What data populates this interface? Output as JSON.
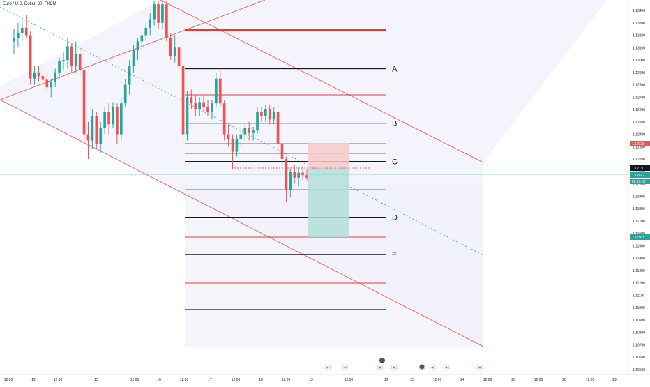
{
  "header": {
    "title": "Euro / U.S. Dollar, 30, FXCM"
  },
  "colors": {
    "up": "#26a69a",
    "down": "#ef5350",
    "level_black": "#131722",
    "level_red": "#e53935",
    "channel": "#f06868",
    "trend_dotted": "#4fa8d8",
    "target_zone": "#b2dfdb",
    "stop_zone": "#f8c9c9",
    "price_tag": "#ef5350",
    "current_tag": "#26a69a"
  },
  "chart_data": {
    "type": "candlestick",
    "x_axis": {
      "tick_labels": [
        "12:00",
        "12",
        "12:00",
        "15",
        "12:00",
        "16",
        "12:00",
        "17",
        "12:00",
        "18",
        "12:00",
        "19",
        "12:00",
        "22",
        "23",
        "12:00",
        "24",
        "12:00",
        "25",
        "12:00",
        "26",
        "12:00",
        "29"
      ]
    },
    "y_axis": {
      "range": [
        1.1045,
        1.135
      ],
      "tick_labels": [
        "1.13400",
        "1.13300",
        "1.13200",
        "1.13100",
        "1.13000",
        "1.12900",
        "1.12800",
        "1.12700",
        "1.12600",
        "1.12500",
        "1.12400",
        "1.12300",
        "1.12200",
        "1.12100",
        "1.12000",
        "1.11900",
        "1.11800",
        "1.11700",
        "1.11600",
        "1.11500",
        "1.11400",
        "1.11300",
        "1.11200",
        "1.11100",
        "1.11000",
        "1.10900",
        "1.10800",
        "1.10700",
        "1.10600",
        "1.10500"
      ]
    },
    "price_tags": {
      "stop": "1.12325",
      "entry": "1.12130",
      "current": "1.12072",
      "countdown": "05:19:53",
      "target": "1.11567"
    },
    "levels": [
      {
        "label": "A",
        "price": 1.1293
      },
      {
        "label": "B",
        "price": 1.1249
      },
      {
        "label": "C",
        "price": 1.1218
      },
      {
        "label": "D",
        "price": 1.1173
      },
      {
        "label": "E",
        "price": 1.1143
      }
    ],
    "candles": [
      [
        1.1315,
        1.1325,
        1.1305,
        1.1318
      ],
      [
        1.1318,
        1.133,
        1.131,
        1.1322
      ],
      [
        1.1322,
        1.1332,
        1.1315,
        1.1326
      ],
      [
        1.1326,
        1.1336,
        1.1318,
        1.132
      ],
      [
        1.132,
        1.1323,
        1.128,
        1.1285
      ],
      [
        1.1285,
        1.1295,
        1.128,
        1.129
      ],
      [
        1.129,
        1.1295,
        1.1283,
        1.1287
      ],
      [
        1.1287,
        1.1292,
        1.128,
        1.1284
      ],
      [
        1.1284,
        1.1289,
        1.1275,
        1.1278
      ],
      [
        1.1278,
        1.1285,
        1.127,
        1.1282
      ],
      [
        1.1282,
        1.1293,
        1.1278,
        1.129
      ],
      [
        1.129,
        1.1302,
        1.1285,
        1.1299
      ],
      [
        1.1299,
        1.1306,
        1.1292,
        1.13
      ],
      [
        1.13,
        1.1318,
        1.1293,
        1.1311
      ],
      [
        1.1311,
        1.1314,
        1.129,
        1.1295
      ],
      [
        1.1295,
        1.1315,
        1.129,
        1.1305
      ],
      [
        1.1305,
        1.131,
        1.1288,
        1.1292
      ],
      [
        1.1292,
        1.1297,
        1.123,
        1.124
      ],
      [
        1.124,
        1.125,
        1.122,
        1.1235
      ],
      [
        1.1235,
        1.126,
        1.1228,
        1.1255
      ],
      [
        1.1255,
        1.1258,
        1.1228,
        1.1232
      ],
      [
        1.1232,
        1.125,
        1.1225,
        1.1245
      ],
      [
        1.1245,
        1.1262,
        1.124,
        1.1258
      ],
      [
        1.1258,
        1.1265,
        1.124,
        1.1248
      ],
      [
        1.1248,
        1.1266,
        1.1245,
        1.1262
      ],
      [
        1.1262,
        1.1265,
        1.1232,
        1.124
      ],
      [
        1.124,
        1.127,
        1.1235,
        1.1265
      ],
      [
        1.1265,
        1.1285,
        1.1262,
        1.128
      ],
      [
        1.128,
        1.13,
        1.1272,
        1.1295
      ],
      [
        1.1295,
        1.1312,
        1.129,
        1.1308
      ],
      [
        1.1308,
        1.1318,
        1.13,
        1.1315
      ],
      [
        1.1315,
        1.1325,
        1.1308,
        1.132
      ],
      [
        1.132,
        1.133,
        1.1315,
        1.1326
      ],
      [
        1.1326,
        1.1338,
        1.132,
        1.1333
      ],
      [
        1.1333,
        1.1348,
        1.1328,
        1.1345
      ],
      [
        1.1345,
        1.1348,
        1.1325,
        1.133
      ],
      [
        1.133,
        1.1348,
        1.1325,
        1.1345
      ],
      [
        1.1345,
        1.1348,
        1.1315,
        1.1318
      ],
      [
        1.1318,
        1.1322,
        1.13,
        1.1303
      ],
      [
        1.1303,
        1.132,
        1.1298,
        1.131
      ],
      [
        1.131,
        1.1312,
        1.1292,
        1.1295
      ],
      [
        1.1295,
        1.1298,
        1.1232,
        1.124
      ],
      [
        1.124,
        1.1275,
        1.1235,
        1.127
      ],
      [
        1.127,
        1.1276,
        1.126,
        1.1265
      ],
      [
        1.1265,
        1.1272,
        1.1255,
        1.126
      ],
      [
        1.126,
        1.127,
        1.1255,
        1.1266
      ],
      [
        1.1266,
        1.1272,
        1.1258,
        1.1262
      ],
      [
        1.1262,
        1.1268,
        1.1255,
        1.1258
      ],
      [
        1.1258,
        1.1268,
        1.1252,
        1.1265
      ],
      [
        1.1265,
        1.129,
        1.1262,
        1.1285
      ],
      [
        1.1285,
        1.1292,
        1.1262,
        1.1265
      ],
      [
        1.1265,
        1.1268,
        1.1235,
        1.124
      ],
      [
        1.124,
        1.1248,
        1.123,
        1.1236
      ],
      [
        1.1236,
        1.124,
        1.1212,
        1.1226
      ],
      [
        1.1226,
        1.124,
        1.1222,
        1.1236
      ],
      [
        1.1236,
        1.1245,
        1.123,
        1.124
      ],
      [
        1.124,
        1.1248,
        1.1235,
        1.1245
      ],
      [
        1.1245,
        1.125,
        1.1235,
        1.1241
      ],
      [
        1.1241,
        1.1246,
        1.1235,
        1.1243
      ],
      [
        1.1243,
        1.1262,
        1.124,
        1.1258
      ],
      [
        1.1258,
        1.1262,
        1.125,
        1.1255
      ],
      [
        1.1255,
        1.1264,
        1.125,
        1.126
      ],
      [
        1.126,
        1.1264,
        1.1248,
        1.1252
      ],
      [
        1.1252,
        1.1262,
        1.1248,
        1.1258
      ],
      [
        1.1258,
        1.1265,
        1.1225,
        1.1232
      ],
      [
        1.1232,
        1.1236,
        1.1215,
        1.122
      ],
      [
        1.122,
        1.1222,
        1.1185,
        1.1195
      ],
      [
        1.1195,
        1.1212,
        1.1189,
        1.121
      ],
      [
        1.121,
        1.1215,
        1.12,
        1.1205
      ],
      [
        1.1205,
        1.1213,
        1.1198,
        1.1209
      ],
      [
        1.1209,
        1.1214,
        1.1203,
        1.1207
      ],
      [
        1.1207,
        1.1212,
        1.1203,
        1.1205
      ]
    ]
  },
  "footer": {
    "markers": [
      "",
      "",
      "",
      "",
      "",
      "",
      "",
      ""
    ]
  }
}
